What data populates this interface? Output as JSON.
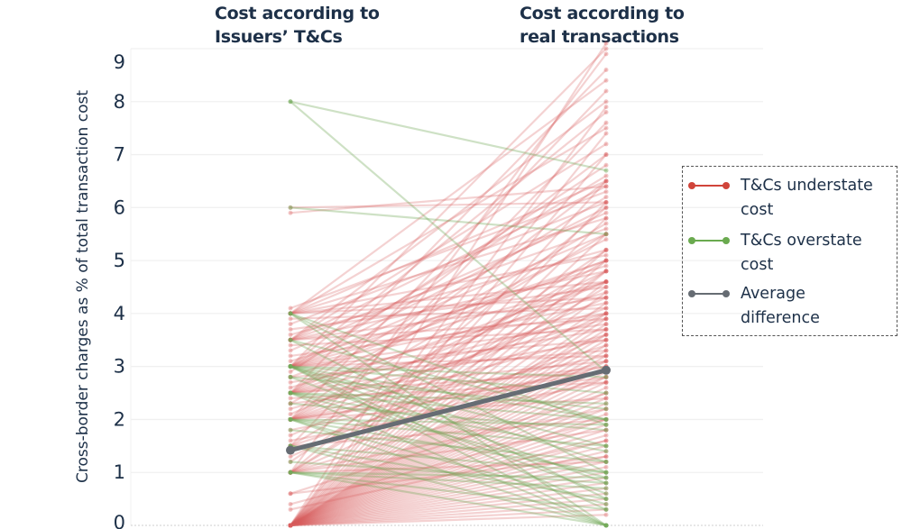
{
  "chart_data": {
    "type": "line",
    "subtype": "slope",
    "categories": [
      "Cost according to Issuers' T&Cs",
      "Cost according to real transactions"
    ],
    "column_titles": [
      "Cost according to\nIssuers’ T&Cs",
      "Cost according to\nreal transactions"
    ],
    "ylabel": "Cross-border charges as % of total transaction cost",
    "xlabel": "",
    "ylim": [
      0,
      9
    ],
    "yticks": [
      0,
      1,
      2,
      3,
      4,
      5,
      6,
      7,
      8,
      9
    ],
    "grid": true,
    "legend_position": "right",
    "legend": [
      {
        "label": "T&Cs understate cost",
        "color": "#d0443a"
      },
      {
        "label": "T&Cs overstate cost",
        "color": "#6aaa4f"
      },
      {
        "label": "Average difference",
        "color": "#666c73"
      }
    ],
    "series": [
      {
        "name": "T&Cs understate cost",
        "color": "#d95f5f",
        "pairs": [
          [
            0,
            9.1
          ],
          [
            0,
            7.9
          ],
          [
            0,
            7.4
          ],
          [
            0,
            7.0
          ],
          [
            0,
            6.5
          ],
          [
            0,
            6.1
          ],
          [
            0,
            5.8
          ],
          [
            0,
            5.5
          ],
          [
            0,
            5.2
          ],
          [
            0,
            5.0
          ],
          [
            0,
            4.8
          ],
          [
            0,
            4.6
          ],
          [
            0,
            4.4
          ],
          [
            0,
            4.2
          ],
          [
            0,
            4.0
          ],
          [
            0,
            3.9
          ],
          [
            0,
            3.8
          ],
          [
            0,
            3.7
          ],
          [
            0,
            3.6
          ],
          [
            0,
            3.5
          ],
          [
            0,
            3.4
          ],
          [
            0,
            3.3
          ],
          [
            0,
            3.2
          ],
          [
            0,
            3.1
          ],
          [
            0,
            3.0
          ],
          [
            0,
            2.9
          ],
          [
            0,
            2.8
          ],
          [
            0,
            2.7
          ],
          [
            0,
            2.6
          ],
          [
            0,
            2.5
          ],
          [
            0,
            2.4
          ],
          [
            0,
            2.3
          ],
          [
            0,
            2.2
          ],
          [
            0,
            2.1
          ],
          [
            0,
            2.0
          ],
          [
            0,
            1.9
          ],
          [
            0,
            1.8
          ],
          [
            0,
            1.7
          ],
          [
            0,
            1.6
          ],
          [
            0,
            1.5
          ],
          [
            0,
            1.4
          ],
          [
            0,
            1.3
          ],
          [
            0,
            1.2
          ],
          [
            0,
            1.1
          ],
          [
            0,
            1.0
          ],
          [
            0,
            0.9
          ],
          [
            0,
            0.8
          ],
          [
            0,
            0.7
          ],
          [
            0,
            0.6
          ],
          [
            0,
            0.5
          ],
          [
            0,
            0.4
          ],
          [
            0,
            0.3
          ],
          [
            0,
            0.2
          ],
          [
            0.3,
            1.6
          ],
          [
            0.4,
            2.0
          ],
          [
            0.6,
            2.5
          ],
          [
            0.6,
            1.3
          ],
          [
            1.0,
            8.9
          ],
          [
            1.0,
            6.0
          ],
          [
            1.0,
            4.5
          ],
          [
            1.0,
            3.6
          ],
          [
            1.0,
            2.8
          ],
          [
            1.0,
            2.2
          ],
          [
            1.0,
            1.8
          ],
          [
            1.0,
            1.2
          ],
          [
            1.2,
            5.2
          ],
          [
            1.3,
            4.0
          ],
          [
            1.4,
            3.1
          ],
          [
            1.5,
            7.6
          ],
          [
            1.5,
            5.0
          ],
          [
            1.5,
            3.4
          ],
          [
            1.5,
            2.0
          ],
          [
            1.6,
            2.7
          ],
          [
            1.7,
            4.3
          ],
          [
            1.8,
            3.0
          ],
          [
            2.0,
            8.2
          ],
          [
            2.0,
            6.5
          ],
          [
            2.0,
            5.5
          ],
          [
            2.0,
            4.8
          ],
          [
            2.0,
            4.1
          ],
          [
            2.0,
            3.6
          ],
          [
            2.0,
            3.2
          ],
          [
            2.0,
            2.8
          ],
          [
            2.0,
            2.4
          ],
          [
            2.1,
            4.6
          ],
          [
            2.2,
            3.9
          ],
          [
            2.3,
            5.7
          ],
          [
            2.3,
            3.0
          ],
          [
            2.4,
            2.7
          ],
          [
            2.5,
            8.6
          ],
          [
            2.5,
            7.0
          ],
          [
            2.5,
            6.2
          ],
          [
            2.5,
            5.4
          ],
          [
            2.5,
            4.6
          ],
          [
            2.5,
            4.0
          ],
          [
            2.5,
            3.5
          ],
          [
            2.5,
            3.1
          ],
          [
            2.5,
            2.9
          ],
          [
            2.6,
            4.4
          ],
          [
            2.7,
            3.7
          ],
          [
            2.8,
            5.0
          ],
          [
            2.8,
            3.3
          ],
          [
            2.9,
            6.8
          ],
          [
            3.0,
            9.0
          ],
          [
            3.0,
            7.8
          ],
          [
            3.0,
            6.6
          ],
          [
            3.0,
            6.0
          ],
          [
            3.0,
            5.5
          ],
          [
            3.0,
            5.0
          ],
          [
            3.0,
            4.6
          ],
          [
            3.0,
            4.2
          ],
          [
            3.0,
            3.8
          ],
          [
            3.0,
            3.5
          ],
          [
            3.0,
            3.2
          ],
          [
            3.1,
            4.9
          ],
          [
            3.2,
            4.0
          ],
          [
            3.3,
            5.9
          ],
          [
            3.4,
            3.7
          ],
          [
            3.5,
            8.0
          ],
          [
            3.5,
            7.2
          ],
          [
            3.5,
            6.4
          ],
          [
            3.5,
            5.6
          ],
          [
            3.5,
            4.8
          ],
          [
            3.5,
            4.3
          ],
          [
            3.5,
            3.9
          ],
          [
            3.6,
            5.2
          ],
          [
            3.7,
            4.5
          ],
          [
            3.8,
            6.1
          ],
          [
            3.9,
            4.1
          ],
          [
            4.0,
            8.4
          ],
          [
            4.0,
            7.5
          ],
          [
            4.0,
            6.5
          ],
          [
            4.0,
            5.8
          ],
          [
            4.0,
            5.1
          ],
          [
            4.0,
            4.6
          ],
          [
            4.0,
            4.3
          ],
          [
            4.1,
            6.3
          ],
          [
            5.9,
            6.4
          ],
          [
            6.0,
            6.1
          ],
          [
            2.0,
            2.9
          ],
          [
            1.0,
            4.8
          ]
        ]
      },
      {
        "name": "T&Cs overstate cost",
        "color": "#74aa5a",
        "pairs": [
          [
            8.0,
            6.7
          ],
          [
            8.0,
            2.9
          ],
          [
            6.0,
            5.5
          ],
          [
            4.0,
            1.9
          ],
          [
            4.0,
            1.0
          ],
          [
            4.0,
            0.0
          ],
          [
            3.5,
            2.0
          ],
          [
            3.5,
            0.5
          ],
          [
            3.0,
            2.5
          ],
          [
            3.0,
            2.0
          ],
          [
            3.0,
            1.5
          ],
          [
            3.0,
            0.8
          ],
          [
            3.0,
            0.3
          ],
          [
            3.0,
            0.0
          ],
          [
            3.0,
            2.8
          ],
          [
            3.0,
            1.2
          ],
          [
            2.8,
            2.2
          ],
          [
            2.8,
            0.6
          ],
          [
            2.5,
            2.0
          ],
          [
            2.5,
            1.4
          ],
          [
            2.5,
            0.9
          ],
          [
            2.5,
            0.0
          ],
          [
            2.5,
            2.3
          ],
          [
            2.3,
            1.8
          ],
          [
            2.0,
            1.5
          ],
          [
            2.0,
            1.0
          ],
          [
            2.0,
            0.4
          ],
          [
            2.0,
            0.0
          ],
          [
            2.0,
            1.9
          ],
          [
            1.8,
            1.2
          ],
          [
            1.5,
            1.0
          ],
          [
            1.5,
            0.5
          ],
          [
            1.5,
            0.0
          ],
          [
            1.2,
            0.8
          ],
          [
            1.0,
            0.7
          ],
          [
            1.0,
            0.3
          ],
          [
            1.0,
            0.0
          ],
          [
            1.0,
            0.9
          ]
        ]
      },
      {
        "name": "Average difference",
        "color": "#666c73",
        "pairs": [
          [
            1.42,
            2.93
          ]
        ]
      }
    ]
  }
}
